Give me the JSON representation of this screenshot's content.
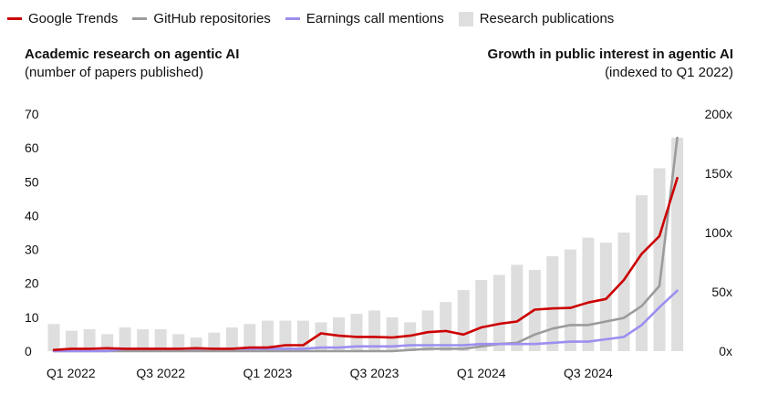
{
  "legend": {
    "items": [
      {
        "label": "Google Trends",
        "color": "#cc0000",
        "kind": "line"
      },
      {
        "label": "GitHub repositories",
        "color": "#9b9b9b",
        "kind": "line"
      },
      {
        "label": "Earnings call mentions",
        "color": "#9b8ff0",
        "kind": "line"
      },
      {
        "label": "Research publications",
        "color": "#dedede",
        "kind": "box"
      }
    ]
  },
  "titles": {
    "left_bold": "Academic research on agentic AI",
    "left_sub": "(number of papers published)",
    "right_bold": "Growth in public interest in agentic AI",
    "right_sub": "(indexed to Q1 2022)"
  },
  "chart_data": {
    "type": "bar+line",
    "x_tick_labels": [
      "Q1 2022",
      "Q3 2022",
      "Q1 2023",
      "Q3 2023",
      "Q1 2024",
      "Q3 2024"
    ],
    "left_axis": {
      "title": "Academic research on agentic AI",
      "subtitle": "(number of papers published)",
      "ticks": [
        0,
        10,
        20,
        30,
        40,
        50,
        60,
        70
      ],
      "ylim": [
        0,
        70
      ]
    },
    "right_axis": {
      "title": "Growth in public interest in agentic AI",
      "subtitle": "(indexed to Q1 2022)",
      "ticks": [
        0,
        50,
        100,
        150,
        200
      ],
      "tick_labels": [
        "0x",
        "50x",
        "100x",
        "150x",
        "200x"
      ],
      "ylim": [
        0,
        200
      ]
    },
    "bars": {
      "name": "Research publications",
      "axis": "left",
      "color": "#dedede",
      "values": [
        8,
        6,
        6.5,
        5,
        7,
        6.5,
        6.5,
        5,
        4,
        5.5,
        7,
        8,
        9,
        9,
        9,
        8.5,
        10,
        11,
        12,
        10,
        8.5,
        12,
        14.5,
        18,
        21,
        22.5,
        25.5,
        24,
        28,
        30,
        33.5,
        32,
        35,
        46,
        54,
        63
      ]
    },
    "series": [
      {
        "name": "Google Trends",
        "axis": "right",
        "color": "#cc0000",
        "values": [
          1,
          2,
          2,
          2.5,
          2,
          2,
          2,
          2,
          2.5,
          2,
          2,
          3,
          3,
          5,
          5,
          15,
          13,
          12,
          12,
          11.5,
          13,
          16,
          17,
          14,
          20,
          23,
          25,
          35,
          36,
          36.5,
          41,
          44,
          60,
          82,
          97,
          146
        ]
      },
      {
        "name": "GitHub repositories",
        "axis": "right",
        "color": "#9b9b9b",
        "values": [
          0,
          0,
          0,
          0,
          0,
          0,
          0,
          0,
          0,
          0,
          0,
          0,
          0,
          0,
          0,
          0,
          0,
          0,
          0,
          0,
          1,
          2,
          2,
          2,
          4,
          6,
          7,
          14,
          19,
          22,
          22,
          25,
          28,
          38,
          55,
          180
        ]
      },
      {
        "name": "Earnings call mentions",
        "axis": "right",
        "color": "#9b8ff0",
        "values": [
          0,
          0,
          0,
          0,
          2,
          2,
          2,
          2,
          2,
          2,
          2,
          2,
          2,
          2,
          2,
          3,
          3,
          4,
          4,
          4,
          5,
          5,
          5,
          5,
          6,
          6,
          6,
          6,
          7,
          8,
          8,
          10,
          12,
          22,
          37,
          51
        ]
      }
    ],
    "grid": false,
    "legend_position": "top-left"
  }
}
